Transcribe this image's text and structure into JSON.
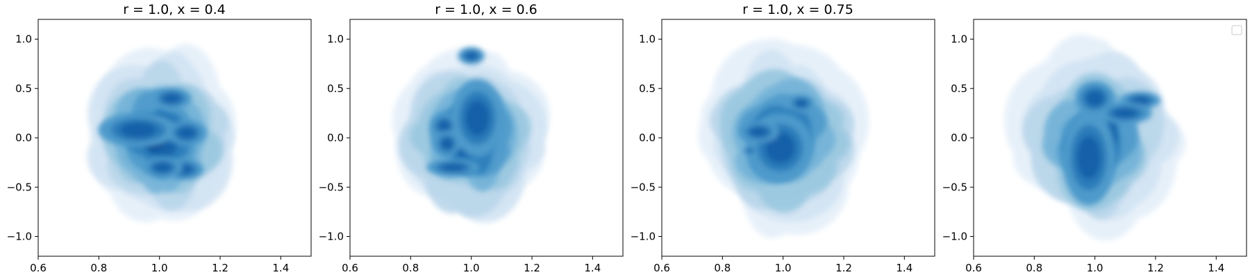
{
  "chart_data": [
    {
      "type": "kde-density",
      "title": "r = 1.0, x = 0.4",
      "xlim": [
        0.6,
        1.5
      ],
      "ylim": [
        -1.2,
        1.2
      ],
      "xticks": [
        0.6,
        0.8,
        1.0,
        1.2,
        1.4
      ],
      "yticks": [
        -1.0,
        -0.5,
        0.0,
        0.5,
        1.0
      ],
      "xtick_labels": [
        "0.6",
        "0.8",
        "1.0",
        "1.2",
        "1.4"
      ],
      "ytick_labels": [
        "−1.0",
        "−0.5",
        "0.0",
        "0.5",
        "1.0"
      ],
      "center": [
        1.0,
        0.0
      ],
      "spread": [
        0.12,
        0.4
      ],
      "hotspots": [
        [
          0.93,
          0.08,
          0.06,
          0.08
        ],
        [
          1.04,
          0.4,
          0.03,
          0.05
        ],
        [
          1.09,
          0.05,
          0.03,
          0.06
        ],
        [
          1.08,
          -0.32,
          0.03,
          0.05
        ],
        [
          1.01,
          -0.3,
          0.03,
          0.05
        ]
      ],
      "show_legend_box": false
    },
    {
      "type": "kde-density",
      "title": "r = 1.0, x = 0.6",
      "xlim": [
        0.6,
        1.5
      ],
      "ylim": [
        -1.2,
        1.2
      ],
      "xticks": [
        0.6,
        0.8,
        1.0,
        1.2,
        1.4
      ],
      "yticks": [
        -1.0,
        -0.5,
        0.0,
        0.5,
        1.0
      ],
      "xtick_labels": [
        "0.6",
        "0.8",
        "1.0",
        "1.2",
        "1.4"
      ],
      "ytick_labels": [
        "−1.0",
        "−0.5",
        "0.0",
        "0.5",
        "1.0"
      ],
      "center": [
        1.0,
        0.0
      ],
      "spread": [
        0.12,
        0.4
      ],
      "hotspots": [
        [
          1.02,
          0.2,
          0.04,
          0.18
        ],
        [
          0.91,
          0.12,
          0.02,
          0.06
        ],
        [
          0.92,
          -0.06,
          0.02,
          0.06
        ],
        [
          0.94,
          -0.3,
          0.04,
          0.04
        ],
        [
          1.0,
          0.83,
          0.02,
          0.04
        ]
      ],
      "show_legend_box": false
    },
    {
      "type": "kde-density",
      "title": "r = 1.0, x = 0.75",
      "xlim": [
        0.6,
        1.5
      ],
      "ylim": [
        -1.2,
        1.2
      ],
      "xticks": [
        0.6,
        0.8,
        1.0,
        1.2,
        1.4
      ],
      "yticks": [
        -1.0,
        -0.5,
        0.0,
        0.5,
        1.0
      ],
      "xtick_labels": [
        "0.6",
        "0.8",
        "1.0",
        "1.2",
        "1.4"
      ],
      "ytick_labels": [
        "−1.0",
        "−0.5",
        "0.0",
        "0.5",
        "1.0"
      ],
      "center": [
        1.0,
        0.0
      ],
      "spread": [
        0.13,
        0.42
      ],
      "hotspots": [
        [
          0.99,
          -0.1,
          0.05,
          0.16
        ],
        [
          1.06,
          0.35,
          0.02,
          0.04
        ],
        [
          0.92,
          0.06,
          0.03,
          0.05
        ],
        [
          0.89,
          -0.13,
          0.01,
          0.02
        ]
      ],
      "show_legend_box": false
    },
    {
      "type": "kde-density",
      "title": "",
      "xlim": [
        0.6,
        1.5
      ],
      "ylim": [
        -1.2,
        1.2
      ],
      "xticks": [
        0.6,
        0.8,
        1.0,
        1.2,
        1.4
      ],
      "yticks": [
        -1.0,
        -0.5,
        0.0,
        0.5,
        1.0
      ],
      "xtick_labels": [
        "0.6",
        "0.8",
        "1.0",
        "1.2",
        "1.4"
      ],
      "ytick_labels": [
        "−1.0",
        "−0.5",
        "0.0",
        "0.5",
        "1.0"
      ],
      "center": [
        1.0,
        0.0
      ],
      "spread": [
        0.12,
        0.42
      ],
      "hotspots": [
        [
          0.98,
          -0.2,
          0.04,
          0.22
        ],
        [
          1.0,
          0.4,
          0.03,
          0.08
        ],
        [
          1.15,
          0.38,
          0.03,
          0.04
        ],
        [
          1.1,
          0.25,
          0.04,
          0.05
        ]
      ],
      "show_legend_box": true
    }
  ],
  "colors": {
    "levels": [
      "#f7fbff",
      "#e4eff9",
      "#d1e3f3",
      "#b9d6ea",
      "#9ac8e0",
      "#73b2d8",
      "#4e9acb",
      "#2b7bba",
      "#1561a9",
      "#08468b"
    ],
    "axis": "#000000",
    "background": "#ffffff"
  }
}
